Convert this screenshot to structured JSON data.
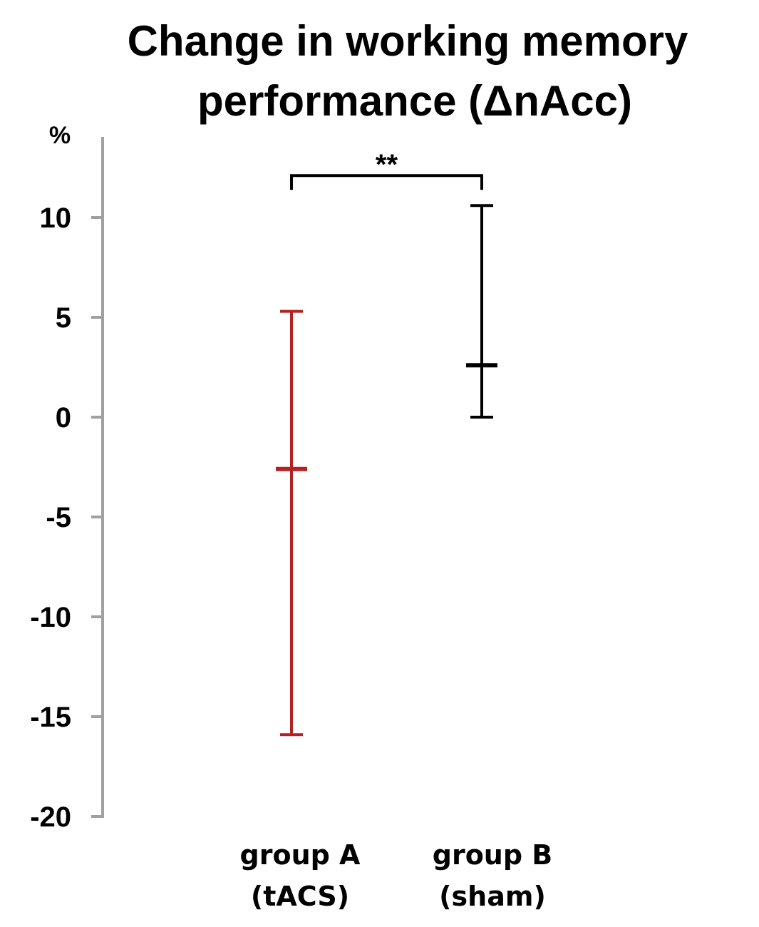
{
  "chart_data": {
    "type": "errorbar",
    "title_lines": [
      "Change in working memory",
      "performance (ΔnAcc)"
    ],
    "unit_label": "%",
    "ylim": [
      -20,
      12
    ],
    "yticks": [
      10,
      5,
      0,
      -5,
      -10,
      -15,
      -20
    ],
    "grid": false,
    "legend": "none",
    "axis_color": "#a0a0a0",
    "groups": [
      {
        "label_lines": [
          "group A",
          "(tACS)"
        ],
        "center": -2.6,
        "low": -15.9,
        "high": 5.3,
        "color": "#b22222"
      },
      {
        "label_lines": [
          "group B",
          "(sham)"
        ],
        "center": 2.6,
        "low": 0,
        "high": 10.6,
        "color": "#000000"
      }
    ],
    "significance": {
      "label": "**",
      "between": [
        0,
        1
      ],
      "at_value": 12.1
    }
  }
}
